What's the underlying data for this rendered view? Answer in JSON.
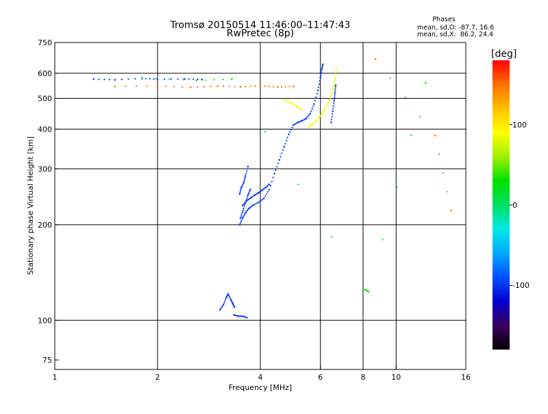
{
  "chart_data": {
    "type": "scatter",
    "title": "Tromsø 20150514 11:46:00–11:47:43",
    "subtitle": "RwPretec (8p)",
    "stats": {
      "heading": "Phases",
      "line1": "mean, sd,O: -87.7, 16.6",
      "line2": "mean, sd,X:  86.2, 24.4"
    },
    "xlabel": "Frequency [MHz]",
    "ylabel": "Stationary phase Virtual Height [km]",
    "x_scale": "log",
    "y_scale": "log",
    "xlim": [
      1,
      16
    ],
    "ylim": [
      70,
      750
    ],
    "x_ticks": [
      {
        "value": 1,
        "label": "1"
      },
      {
        "value": 2,
        "label": "2"
      },
      {
        "value": 4,
        "label": "4"
      },
      {
        "value": 6,
        "label": "6"
      },
      {
        "value": 8,
        "label": "8"
      },
      {
        "value": 10,
        "label": "10"
      },
      {
        "value": 16,
        "label": "16"
      }
    ],
    "x_gridlines": [
      2,
      4,
      6,
      8,
      10
    ],
    "y_ticks": [
      {
        "value": 75,
        "label": "75"
      },
      {
        "value": 100,
        "label": "100"
      },
      {
        "value": 200,
        "label": "200"
      },
      {
        "value": 300,
        "label": "300"
      },
      {
        "value": 400,
        "label": "400"
      },
      {
        "value": 500,
        "label": "500"
      },
      {
        "value": 600,
        "label": "600"
      },
      {
        "value": 750,
        "label": "750"
      }
    ],
    "y_gridlines": [
      100,
      200,
      300,
      400,
      500,
      600
    ],
    "colorbar": {
      "label": "[deg]",
      "range": [
        -180,
        180
      ],
      "ticks": [
        {
          "value": 100,
          "label": "100"
        },
        {
          "value": 0,
          "label": "0"
        },
        {
          "value": -100,
          "label": "-100"
        }
      ],
      "stops": [
        "#000000",
        "#3a0060",
        "#0000d0",
        "#0050ff",
        "#00a8ff",
        "#00e8e8",
        "#00e060",
        "#00e000",
        "#a0f000",
        "#ffff00",
        "#ffc000",
        "#ff7000",
        "#ff0000"
      ]
    },
    "series": [
      {
        "color": "#1040ff",
        "segments": [
          {
            "x": [
              3.48,
              3.55,
              3.62,
              3.7,
              3.8,
              3.95,
              4.1,
              4.25,
              4.4,
              4.55,
              4.7,
              4.85,
              5.0,
              5.15,
              5.3,
              5.45,
              5.6,
              5.75,
              5.9,
              6.0,
              6.05,
              6.1
            ],
            "y": [
              200,
              210,
              218,
              225,
              230,
              235,
              242,
              258,
              290,
              320,
              352,
              385,
              412,
              420,
              425,
              432,
              448,
              480,
              530,
              580,
              615,
              640
            ]
          },
          {
            "x": [
              3.55,
              3.65,
              3.75,
              3.85,
              3.95,
              4.05,
              4.15,
              4.25
            ],
            "y": [
              230,
              238,
              243,
              248,
              252,
              257,
              262,
              268
            ]
          },
          {
            "x": [
              3.48,
              3.52,
              3.58,
              3.62,
              3.68
            ],
            "y": [
              250,
              262,
              272,
              285,
              305
            ]
          },
          {
            "x": [
              3.5,
              3.56,
              3.62,
              3.68,
              3.74
            ],
            "y": [
              210,
              222,
              235,
              248,
              258
            ]
          },
          {
            "x": [
              6.45,
              6.52,
              6.58,
              6.62,
              6.65
            ],
            "y": [
              420,
              455,
              490,
              520,
              550
            ]
          },
          {
            "x": [
              3.05,
              3.12,
              3.18,
              3.22,
              3.28,
              3.32,
              3.36
            ],
            "y": [
              108,
              112,
              118,
              121,
              116,
              113,
              110
            ]
          },
          {
            "x": [
              3.35,
              3.45,
              3.55,
              3.65
            ],
            "y": [
              104,
              103,
              103,
              102
            ]
          },
          {
            "x": [
              1.3,
              1.5,
              1.8,
              2.0,
              2.4,
              2.7
            ],
            "y": [
              575,
              572,
              578,
              574,
              576,
              573
            ]
          }
        ]
      },
      {
        "color": "#e8ff00",
        "segments": [
          {
            "x": [
              5.55,
              5.7,
              5.85,
              6.0,
              6.15,
              6.3,
              6.45,
              6.55,
              6.62,
              6.68
            ],
            "y": [
              408,
              415,
              425,
              440,
              458,
              480,
              510,
              540,
              575,
              620
            ]
          },
          {
            "x": [
              4.7,
              4.9,
              5.1,
              5.3
            ],
            "y": [
              495,
              485,
              472,
              460
            ]
          }
        ]
      },
      {
        "color": "#ff7000",
        "segments": [
          {
            "x": [
              1.5,
              2.0,
              2.5,
              3.0,
              3.5,
              4.0,
              4.5,
              5.0
            ],
            "y": [
              545,
              548,
              542,
              546,
              544,
              547,
              543,
              545
            ]
          },
          {
            "x": [
              8.7,
              13.0,
              14.5
            ],
            "y": [
              665,
              382,
              222
            ]
          }
        ]
      },
      {
        "color": "#00e800",
        "segments": [
          {
            "x": [
              1.8,
              2.6,
              3.3,
              8.1,
              8.3,
              12.2
            ],
            "y": [
              580,
              570,
              575,
              125,
              123,
              560
            ]
          }
        ]
      }
    ]
  }
}
